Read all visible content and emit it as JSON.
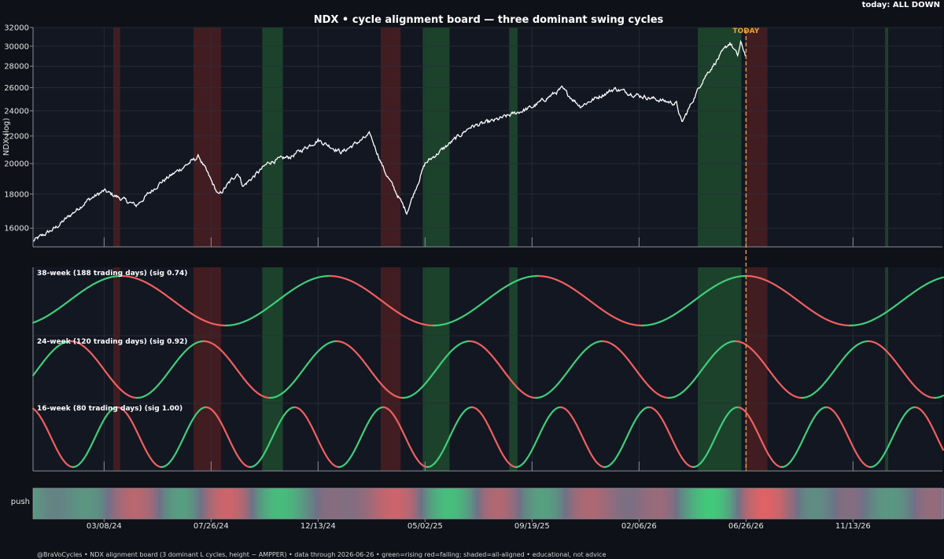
{
  "title": "NDX  •  cycle alignment board — three dominant swing cycles",
  "status": "today: ALL DOWN",
  "footer": "@BraVoCycles  •  NDX alignment board (3 dominant L cycles, height ~ AMPPER)  •  data through 2026-06-26  •  green=rising red=falling; shaded=all-aligned  •  educational, not advice",
  "colors": {
    "background": "#0e1117",
    "panel": "#131722",
    "price_line": "#ffffff",
    "rising": "#3ecf7a",
    "falling": "#f06060",
    "today_line": "#f0a030",
    "aligned_up_shade": "#1e4a2e",
    "aligned_down_shade": "#4a1e22"
  },
  "chart_data": [
    {
      "type": "line",
      "ylabel": "NDX (log)",
      "yscale": "log",
      "ylim": [
        15000,
        32000
      ],
      "yticks": [
        16000,
        18000,
        20000,
        22000,
        24000,
        26000,
        28000,
        30000,
        32000
      ],
      "x_range": [
        "2023-12-06",
        "2027-03-10"
      ],
      "today": {
        "label": "TODAY",
        "date": "2026-06-26"
      },
      "grid": true,
      "price_keypoints": [
        [
          "2023-12-06",
          15300
        ],
        [
          "2024-01-04",
          16000
        ],
        [
          "2024-02-15",
          17600
        ],
        [
          "2024-03-08",
          18200
        ],
        [
          "2024-04-19",
          17300
        ],
        [
          "2024-05-20",
          18700
        ],
        [
          "2024-07-10",
          20500
        ],
        [
          "2024-08-05",
          17900
        ],
        [
          "2024-08-30",
          19400
        ],
        [
          "2024-09-06",
          18500
        ],
        [
          "2024-10-10",
          20100
        ],
        [
          "2024-11-08",
          20500
        ],
        [
          "2024-12-13",
          21700
        ],
        [
          "2025-01-13",
          20800
        ],
        [
          "2025-02-19",
          22100
        ],
        [
          "2025-03-10",
          19500
        ],
        [
          "2025-04-08",
          16900
        ],
        [
          "2025-05-02",
          20000
        ],
        [
          "2025-06-30",
          22700
        ],
        [
          "2025-08-01",
          23200
        ],
        [
          "2025-09-19",
          24300
        ],
        [
          "2025-10-28",
          25900
        ],
        [
          "2025-11-21",
          24400
        ],
        [
          "2026-01-05",
          25900
        ],
        [
          "2026-02-06",
          25300
        ],
        [
          "2026-03-27",
          24600
        ],
        [
          "2026-04-03",
          23000
        ],
        [
          "2026-05-01",
          26800
        ],
        [
          "2026-06-05",
          30400
        ],
        [
          "2026-06-15",
          29000
        ],
        [
          "2026-06-19",
          30300
        ],
        [
          "2026-06-26",
          29000
        ]
      ]
    },
    {
      "type": "line",
      "series": [
        {
          "name": "38-week (188 trading days)",
          "sig": "(sig 0.74)",
          "period_trading_days": 188,
          "peak_date": "2026-06-26"
        },
        {
          "name": "24-week (120 trading days)",
          "sig": "(sig 0.92)",
          "period_trading_days": 120,
          "peak_date": "2026-06-12"
        },
        {
          "name": "16-week (80 trading days)",
          "sig": "(sig 1.00)",
          "period_trading_days": 80,
          "peak_date": "2026-06-15"
        }
      ]
    },
    {
      "type": "heatmap",
      "label": "push",
      "x_ticks": [
        "03/08/24",
        "07/26/24",
        "12/13/24",
        "05/02/25",
        "09/19/25",
        "02/06/26",
        "06/26/26",
        "11/13/26"
      ]
    }
  ],
  "aligned_zones": [
    {
      "start": "2024-03-20",
      "end": "2024-03-29",
      "direction": "down"
    },
    {
      "start": "2024-07-03",
      "end": "2024-08-08",
      "direction": "down"
    },
    {
      "start": "2024-10-01",
      "end": "2024-10-28",
      "direction": "up"
    },
    {
      "start": "2025-03-05",
      "end": "2025-03-31",
      "direction": "down"
    },
    {
      "start": "2025-04-29",
      "end": "2025-06-03",
      "direction": "up"
    },
    {
      "start": "2025-08-20",
      "end": "2025-08-31",
      "direction": "up"
    },
    {
      "start": "2026-04-24",
      "end": "2026-06-20",
      "direction": "up"
    },
    {
      "start": "2026-06-26",
      "end": "2026-07-24",
      "direction": "down"
    },
    {
      "start": "2026-12-25",
      "end": "2026-12-29",
      "direction": "up"
    }
  ]
}
